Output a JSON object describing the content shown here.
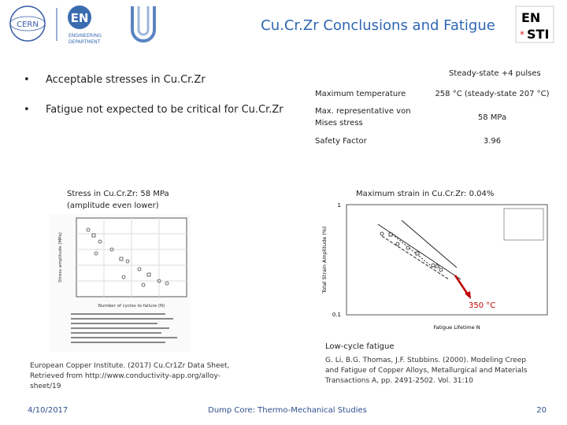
{
  "header": {
    "title": "Cu.Cr.Zr Conclusions and Fatigue",
    "logos": {
      "cern": "CERN",
      "en": "EN",
      "en_sub": [
        "ENGINEERING",
        "DEPARTMENT"
      ],
      "sti_top": "EN",
      "sti_bottom": "STI"
    }
  },
  "bullets": [
    "Acceptable stresses in Cu.Cr.Zr",
    "Fatigue not expected to be critical for Cu.Cr.Zr"
  ],
  "table": {
    "header": "Steady-state +4 pulses",
    "rows": [
      [
        "Maximum temperature",
        "258 °C (steady-state 207 °C)"
      ],
      [
        [
          "Max. representative von",
          "Mises stress"
        ],
        "58 MPa"
      ],
      [
        "Safety Factor",
        "3.96"
      ]
    ]
  },
  "left_figure": {
    "caption": [
      "Stress in Cu.Cr.Zr: 58 MPa",
      "(amplitude even lower)"
    ],
    "x_label": "Number of cycles to failure (N)",
    "y_label": "Stress amplitude (MPa)",
    "reference": [
      "European Copper Institute. (2017) Cu.Cr1Zr Data Sheet,",
      "Retrieved from http://www.conductivity-app.org/alloy-",
      "sheet/19"
    ]
  },
  "right_figure": {
    "caption": "Maximum strain in Cu.Cr.Zr: 0.04%",
    "x_label": "Fatigue Lifetime N",
    "y_label": "Total Strain Amplitude (%)",
    "y_ticks": [
      "1",
      "0.1"
    ],
    "annotation": "350 °C",
    "subcaption": "Low-cycle fatigue",
    "reference": [
      "G. Li, B.G. Thomas, J.F. Stubbins. (2000). Modeling Creep",
      "and Fatigue of Copper Alloys, Metallurgical and Materials",
      "Transactions A, pp. 2491-2502. Vol. 31:10"
    ]
  },
  "footer": {
    "date": "4/10/2017",
    "center": "Dump Core: Thermo-Mechanical Studies",
    "page": "20"
  }
}
